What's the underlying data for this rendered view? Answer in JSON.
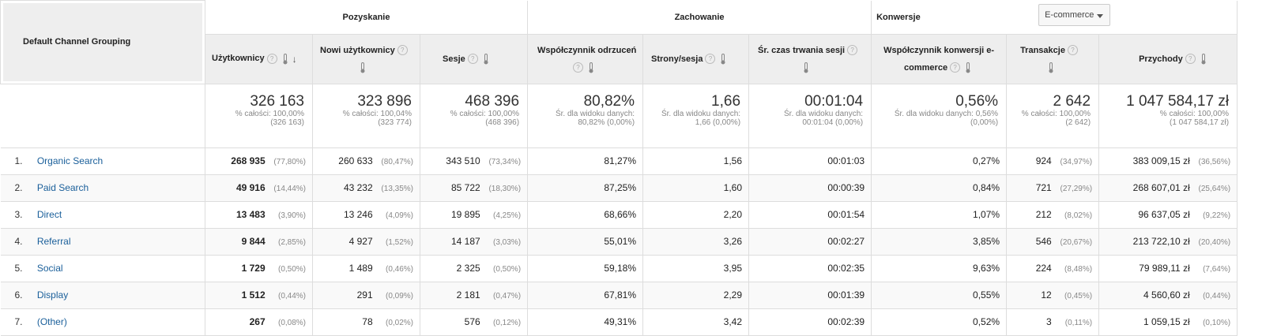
{
  "groups": {
    "dimension": "Default Channel Grouping",
    "acquisition": "Pozyskanie",
    "behavior": "Zachowanie",
    "conversions": "Konwersje",
    "conversion_select": "E-commerce"
  },
  "columns": {
    "users": "Użytkownicy",
    "new_users": "Nowi użytkownicy",
    "sessions": "Sesje",
    "bounce_rate": "Współczynnik odrzuceń",
    "pages_session": "Strony/sesja",
    "avg_duration": "Śr. czas trwania sesji",
    "conv_rate_1": "Współczynnik konwersji e-",
    "conv_rate_2": "commerce",
    "transactions": "Transakcje",
    "revenue": "Przychody"
  },
  "totals": {
    "users": {
      "value": "326 163",
      "line1": "% całości: 100,00%",
      "line2": "(326 163)"
    },
    "new_users": {
      "value": "323 896",
      "line1": "% całości: 100,04%",
      "line2": "(323 774)"
    },
    "sessions": {
      "value": "468 396",
      "line1": "% całości: 100,00%",
      "line2": "(468 396)"
    },
    "bounce_rate": {
      "value": "80,82%",
      "line1": "Śr. dla widoku danych:",
      "line2": "80,82% (0,00%)"
    },
    "pages_session": {
      "value": "1,66",
      "line1": "Śr. dla widoku danych:",
      "line2": "1,66 (0,00%)"
    },
    "avg_duration": {
      "value": "00:01:04",
      "line1": "Śr. dla widoku danych:",
      "line2": "00:01:04 (0,00%)"
    },
    "conv_rate": {
      "value": "0,56%",
      "line1": "Śr. dla widoku danych: 0,56%",
      "line2": "(0,00%)"
    },
    "transactions": {
      "value": "2 642",
      "line1": "% całości: 100,00%",
      "line2": "(2 642)"
    },
    "revenue": {
      "value": "1 047 584,17 zł",
      "line1": "% całości: 100,00%",
      "line2": "(1 047 584,17 zł)"
    }
  },
  "rows": [
    {
      "num": "1.",
      "channel": "Organic Search",
      "users": "268 935",
      "users_pct": "(77,80%)",
      "new_users": "260 633",
      "new_users_pct": "(80,47%)",
      "sessions": "343 510",
      "sessions_pct": "(73,34%)",
      "bounce": "81,27%",
      "pages": "1,56",
      "duration": "00:01:03",
      "conv": "0,27%",
      "trans": "924",
      "trans_pct": "(34,97%)",
      "revenue": "383 009,15 zł",
      "revenue_pct": "(36,56%)"
    },
    {
      "num": "2.",
      "channel": "Paid Search",
      "users": "49 916",
      "users_pct": "(14,44%)",
      "new_users": "43 232",
      "new_users_pct": "(13,35%)",
      "sessions": "85 722",
      "sessions_pct": "(18,30%)",
      "bounce": "87,25%",
      "pages": "1,60",
      "duration": "00:00:39",
      "conv": "0,84%",
      "trans": "721",
      "trans_pct": "(27,29%)",
      "revenue": "268 607,01 zł",
      "revenue_pct": "(25,64%)"
    },
    {
      "num": "3.",
      "channel": "Direct",
      "users": "13 483",
      "users_pct": "(3,90%)",
      "new_users": "13 246",
      "new_users_pct": "(4,09%)",
      "sessions": "19 895",
      "sessions_pct": "(4,25%)",
      "bounce": "68,66%",
      "pages": "2,20",
      "duration": "00:01:54",
      "conv": "1,07%",
      "trans": "212",
      "trans_pct": "(8,02%)",
      "revenue": "96 637,05 zł",
      "revenue_pct": "(9,22%)"
    },
    {
      "num": "4.",
      "channel": "Referral",
      "users": "9 844",
      "users_pct": "(2,85%)",
      "new_users": "4 927",
      "new_users_pct": "(1,52%)",
      "sessions": "14 187",
      "sessions_pct": "(3,03%)",
      "bounce": "55,01%",
      "pages": "3,26",
      "duration": "00:02:27",
      "conv": "3,85%",
      "trans": "546",
      "trans_pct": "(20,67%)",
      "revenue": "213 722,10 zł",
      "revenue_pct": "(20,40%)"
    },
    {
      "num": "5.",
      "channel": "Social",
      "users": "1 729",
      "users_pct": "(0,50%)",
      "new_users": "1 489",
      "new_users_pct": "(0,46%)",
      "sessions": "2 325",
      "sessions_pct": "(0,50%)",
      "bounce": "59,18%",
      "pages": "3,95",
      "duration": "00:02:35",
      "conv": "9,63%",
      "trans": "224",
      "trans_pct": "(8,48%)",
      "revenue": "79 989,11 zł",
      "revenue_pct": "(7,64%)"
    },
    {
      "num": "6.",
      "channel": "Display",
      "users": "1 512",
      "users_pct": "(0,44%)",
      "new_users": "291",
      "new_users_pct": "(0,09%)",
      "sessions": "2 181",
      "sessions_pct": "(0,47%)",
      "bounce": "67,81%",
      "pages": "2,29",
      "duration": "00:01:39",
      "conv": "0,55%",
      "trans": "12",
      "trans_pct": "(0,45%)",
      "revenue": "4 560,60 zł",
      "revenue_pct": "(0,44%)"
    },
    {
      "num": "7.",
      "channel": "(Other)",
      "users": "267",
      "users_pct": "(0,08%)",
      "new_users": "78",
      "new_users_pct": "(0,02%)",
      "sessions": "576",
      "sessions_pct": "(0,12%)",
      "bounce": "49,31%",
      "pages": "3,42",
      "duration": "00:02:39",
      "conv": "0,52%",
      "trans": "3",
      "trans_pct": "(0,11%)",
      "revenue": "1 059,15 zł",
      "revenue_pct": "(0,10%)"
    }
  ]
}
